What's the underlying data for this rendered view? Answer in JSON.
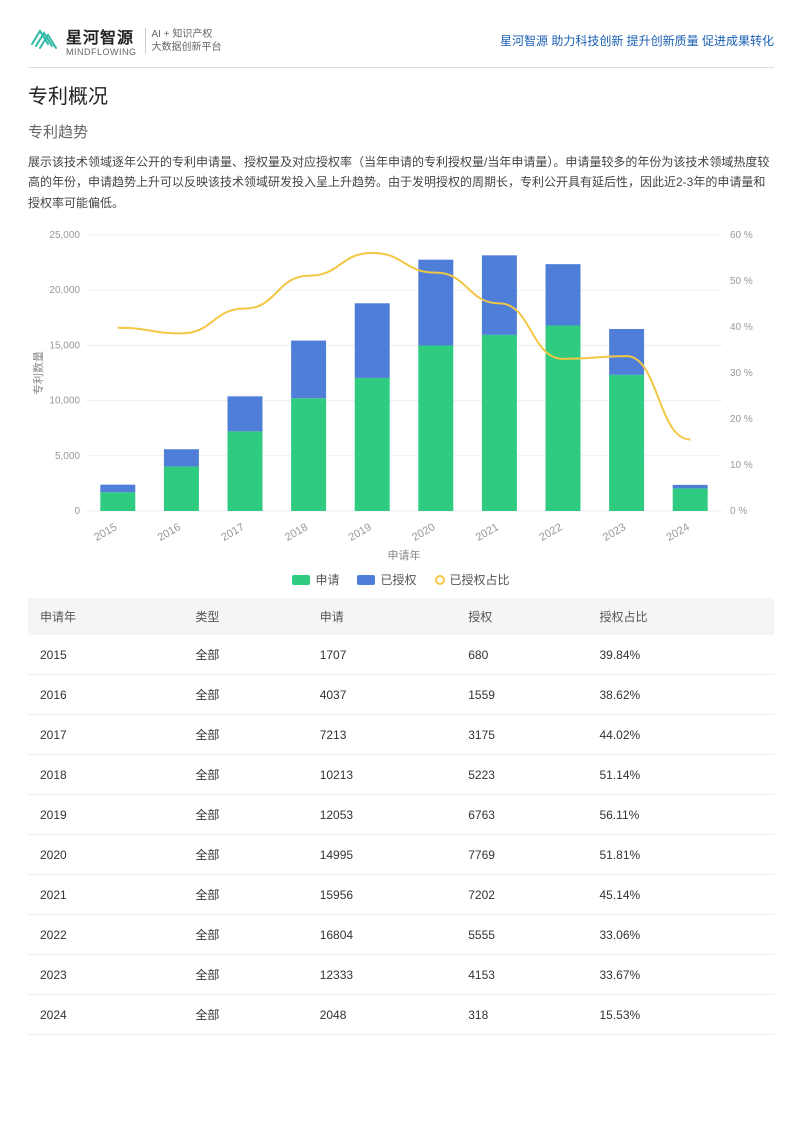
{
  "header": {
    "brand_cn": "星河智源",
    "brand_en": "MINDFLOWING",
    "sub_line1": "AI + 知识产权",
    "sub_line2": "大数据创新平台",
    "tagline": "星河智源 助力科技创新 提升创新质量 促进成果转化",
    "logo_color": "#2fb8a6"
  },
  "section": {
    "title": "专利概况",
    "subtitle": "专利趋势",
    "intro": "展示该技术领域逐年公开的专利申请量、授权量及对应授权率（当年申请的专利授权量/当年申请量）。申请量较多的年份为该技术领域热度较高的年份，申请趋势上升可以反映该技术领域研发投入呈上升趋势。由于发明授权的周期长，专利公开具有延后性，因此近2-3年的申请量和授权率可能偏低。"
  },
  "chart": {
    "type": "stacked-bar-with-line",
    "x_title": "申请年",
    "y_left_title": "专利数量",
    "y_left_max": 25000,
    "y_left_step": 5000,
    "y_right_max": 60,
    "y_right_step": 10,
    "y_right_suffix": " %",
    "categories": [
      "2015",
      "2016",
      "2017",
      "2018",
      "2019",
      "2020",
      "2021",
      "2022",
      "2023",
      "2024"
    ],
    "series_apply": [
      1707,
      4037,
      7213,
      10213,
      12053,
      14995,
      15956,
      16804,
      12333,
      2048
    ],
    "series_grant": [
      680,
      1559,
      3175,
      5223,
      6763,
      7769,
      7202,
      5555,
      4153,
      318
    ],
    "series_ratio": [
      39.84,
      38.62,
      44.02,
      51.14,
      56.11,
      51.81,
      45.14,
      33.06,
      33.67,
      15.53
    ],
    "colors": {
      "apply": "#2ecb80",
      "grant": "#4f7ed9",
      "ratio": "#f2c744",
      "grid": "#eceff1",
      "axis_text": "#999999",
      "background": "#ffffff"
    },
    "bar_width_ratio": 0.55,
    "legend": {
      "apply": "申请",
      "grant": "已授权",
      "ratio": "已授权占比"
    }
  },
  "table": {
    "columns": [
      "申请年",
      "类型",
      "申请",
      "授权",
      "授权占比"
    ],
    "type_value": "全部",
    "rows": [
      {
        "year": "2015",
        "apply": "1707",
        "grant": "680",
        "ratio": "39.84%"
      },
      {
        "year": "2016",
        "apply": "4037",
        "grant": "1559",
        "ratio": "38.62%"
      },
      {
        "year": "2017",
        "apply": "7213",
        "grant": "3175",
        "ratio": "44.02%"
      },
      {
        "year": "2018",
        "apply": "10213",
        "grant": "5223",
        "ratio": "51.14%"
      },
      {
        "year": "2019",
        "apply": "12053",
        "grant": "6763",
        "ratio": "56.11%"
      },
      {
        "year": "2020",
        "apply": "14995",
        "grant": "7769",
        "ratio": "51.81%"
      },
      {
        "year": "2021",
        "apply": "15956",
        "grant": "7202",
        "ratio": "45.14%"
      },
      {
        "year": "2022",
        "apply": "16804",
        "grant": "5555",
        "ratio": "33.06%"
      },
      {
        "year": "2023",
        "apply": "12333",
        "grant": "4153",
        "ratio": "33.67%"
      },
      {
        "year": "2024",
        "apply": "2048",
        "grant": "318",
        "ratio": "15.53%"
      }
    ]
  }
}
